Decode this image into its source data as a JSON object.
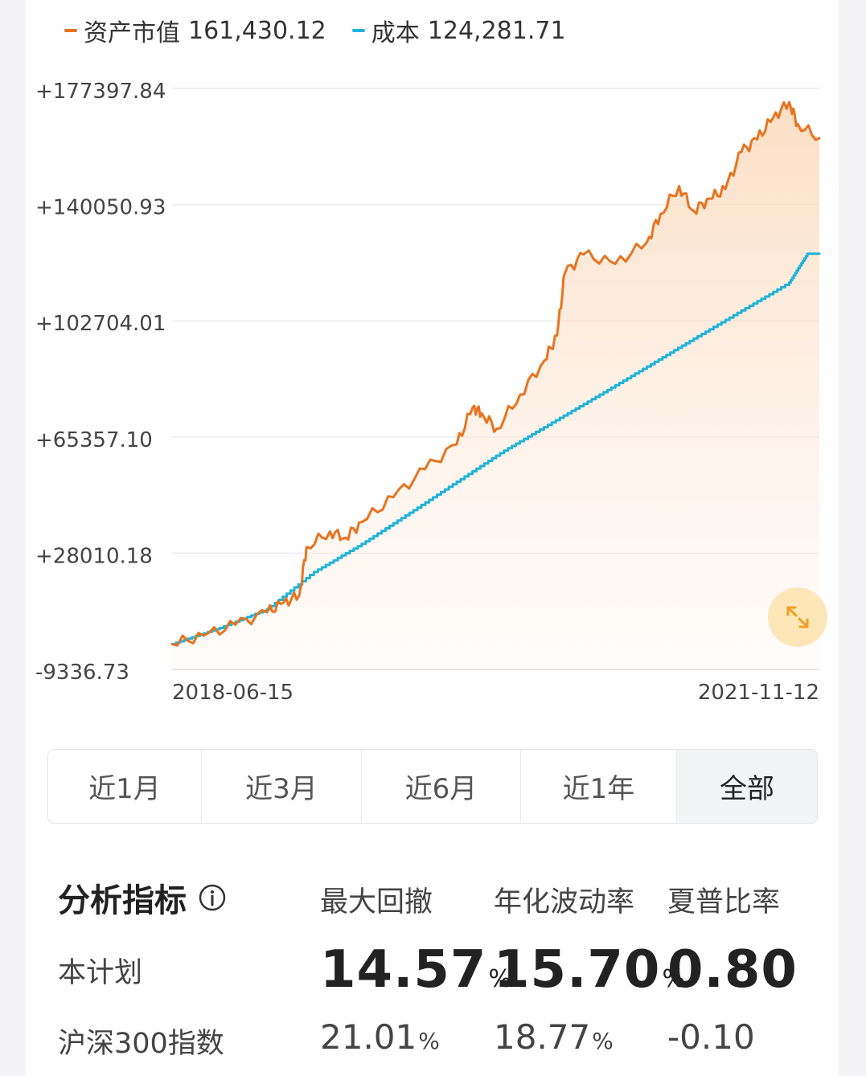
{
  "legend": {
    "asset": {
      "label": "资产市值",
      "value": "161,430.12",
      "color": "#e8731f"
    },
    "cost": {
      "label": "成本",
      "value": "124,281.71",
      "color": "#1fb3d9"
    }
  },
  "chart_data": {
    "type": "line",
    "title": "",
    "xlabel": "",
    "ylabel": "",
    "x_range": [
      "2018-06-15",
      "2021-11-12"
    ],
    "x_tick_labels": [
      "2018-06-15",
      "2021-11-12"
    ],
    "y_tick_labels": [
      "+177397.84",
      "+140050.93",
      "+102704.01",
      "+65357.10",
      "+28010.18",
      "-9336.73"
    ],
    "ylim": [
      -9336.73,
      177397.84
    ],
    "grid": true,
    "legend_position": "top-left",
    "series": [
      {
        "name": "资产市值",
        "color": "#e8731f",
        "fill": true,
        "x": [
          "2018-06-15",
          "2018-08-15",
          "2018-10-15",
          "2018-12-15",
          "2019-01-15",
          "2019-02-15",
          "2019-03-01",
          "2019-04-15",
          "2019-05-15",
          "2019-06-15",
          "2019-08-15",
          "2019-10-15",
          "2019-12-15",
          "2020-01-15",
          "2020-02-01",
          "2020-03-01",
          "2020-04-15",
          "2020-06-01",
          "2020-06-25",
          "2020-07-10",
          "2020-08-15",
          "2020-10-15",
          "2020-12-15",
          "2021-01-10",
          "2021-02-15",
          "2021-03-15",
          "2021-04-15",
          "2021-05-15",
          "2021-06-15",
          "2021-07-15",
          "2021-08-15",
          "2021-09-15",
          "2021-10-01",
          "2021-11-12"
        ],
        "y": [
          -1200,
          1500,
          5000,
          9000,
          12000,
          14500,
          30000,
          35000,
          33000,
          38000,
          46000,
          55000,
          63000,
          75000,
          73000,
          68000,
          79000,
          90000,
          98000,
          118000,
          124000,
          121000,
          128000,
          137000,
          146000,
          138000,
          142000,
          145000,
          157000,
          161000,
          168000,
          173000,
          166000,
          161430
        ]
      },
      {
        "name": "成本",
        "color": "#1fb3d9",
        "fill": false,
        "x": [
          "2018-06-15",
          "2018-09-15",
          "2018-12-15",
          "2019-03-15",
          "2019-06-15",
          "2019-09-15",
          "2019-12-15",
          "2020-03-15",
          "2020-06-15",
          "2020-09-15",
          "2020-12-15",
          "2021-03-15",
          "2021-06-15",
          "2021-09-15",
          "2021-10-20",
          "2021-11-12"
        ],
        "y": [
          -1200,
          4000,
          10000,
          22000,
          31000,
          41000,
          51000,
          61000,
          70000,
          79000,
          88000,
          97000,
          106000,
          115000,
          124281,
          124281
        ]
      }
    ]
  },
  "tabs": [
    {
      "label": "近1月",
      "active": false
    },
    {
      "label": "近3月",
      "active": false
    },
    {
      "label": "近6月",
      "active": false
    },
    {
      "label": "近1年",
      "active": false
    },
    {
      "label": "全部",
      "active": true
    }
  ],
  "metrics": {
    "title": "分析指标",
    "info_icon": "info-circle-icon",
    "columns": [
      "最大回撤",
      "年化波动率",
      "夏普比率"
    ],
    "rows": [
      {
        "label": "本计划",
        "values": [
          "14.57",
          "15.70",
          "0.80"
        ],
        "units": [
          "%",
          "%",
          ""
        ]
      },
      {
        "label": "沪深300指数",
        "values": [
          "21.01",
          "18.77",
          "-0.10"
        ],
        "units": [
          "%",
          "%",
          ""
        ]
      }
    ]
  },
  "expand_icon": "expand-arrows-icon"
}
